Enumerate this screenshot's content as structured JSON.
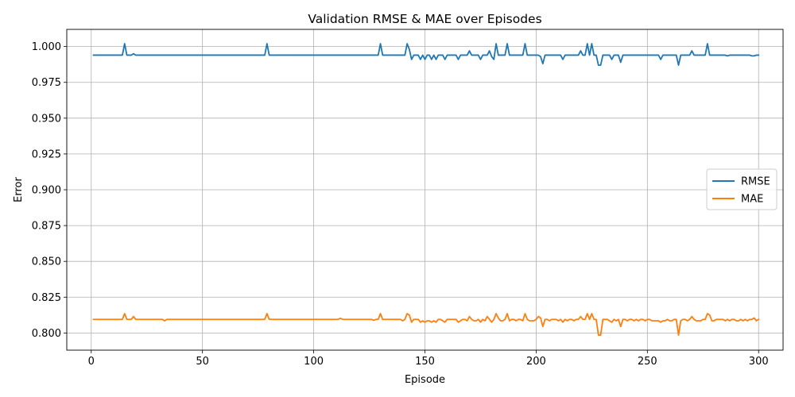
{
  "chart_data": {
    "type": "line",
    "title": "Validation RMSE & MAE over Episodes",
    "xlabel": "Episode",
    "ylabel": "Error",
    "xlim": [
      -11,
      311
    ],
    "ylim": [
      0.788,
      1.012
    ],
    "xticks": [
      0,
      50,
      100,
      150,
      200,
      250,
      300
    ],
    "yticks": [
      0.8,
      0.825,
      0.85,
      0.875,
      0.9,
      0.925,
      0.95,
      0.975,
      1.0
    ],
    "ytick_labels": [
      "0.800",
      "0.825",
      "0.850",
      "0.875",
      "0.900",
      "0.925",
      "0.950",
      "0.975",
      "1.000"
    ],
    "grid": true,
    "legend_position": "center-right",
    "series": [
      {
        "name": "RMSE",
        "color": "#1f77b4",
        "baseline": 0.994,
        "x_range": [
          1,
          300
        ],
        "deviations": [
          [
            15,
            1.002
          ],
          [
            16,
            0.994
          ],
          [
            19,
            0.995
          ],
          [
            20,
            0.994
          ],
          [
            79,
            1.002
          ],
          [
            80,
            0.994
          ],
          [
            130,
            1.002
          ],
          [
            131,
            0.994
          ],
          [
            142,
            1.002
          ],
          [
            143,
            0.998
          ],
          [
            144,
            0.991
          ],
          [
            145,
            0.994
          ],
          [
            146,
            0.994
          ],
          [
            147,
            0.994
          ],
          [
            148,
            0.991
          ],
          [
            149,
            0.994
          ],
          [
            150,
            0.991
          ],
          [
            151,
            0.994
          ],
          [
            152,
            0.994
          ],
          [
            153,
            0.991
          ],
          [
            154,
            0.994
          ],
          [
            155,
            0.991
          ],
          [
            156,
            0.994
          ],
          [
            157,
            0.994
          ],
          [
            158,
            0.994
          ],
          [
            159,
            0.991
          ],
          [
            160,
            0.994
          ],
          [
            164,
            0.994
          ],
          [
            165,
            0.991
          ],
          [
            166,
            0.994
          ],
          [
            170,
            0.997
          ],
          [
            171,
            0.994
          ],
          [
            174,
            0.994
          ],
          [
            175,
            0.991
          ],
          [
            176,
            0.994
          ],
          [
            178,
            0.994
          ],
          [
            179,
            0.997
          ],
          [
            180,
            0.993
          ],
          [
            181,
            0.991
          ],
          [
            182,
            1.002
          ],
          [
            183,
            0.994
          ],
          [
            187,
            1.002
          ],
          [
            188,
            0.994
          ],
          [
            195,
            1.002
          ],
          [
            196,
            0.994
          ],
          [
            201,
            0.994
          ],
          [
            202,
            0.993
          ],
          [
            203,
            0.988
          ],
          [
            204,
            0.994
          ],
          [
            211,
            0.994
          ],
          [
            212,
            0.991
          ],
          [
            213,
            0.994
          ],
          [
            219,
            0.994
          ],
          [
            220,
            0.997
          ],
          [
            221,
            0.994
          ],
          [
            222,
            0.994
          ],
          [
            223,
            1.002
          ],
          [
            224,
            0.994
          ],
          [
            225,
            1.002
          ],
          [
            226,
            0.994
          ],
          [
            227,
            0.994
          ],
          [
            228,
            0.987
          ],
          [
            229,
            0.987
          ],
          [
            230,
            0.994
          ],
          [
            233,
            0.994
          ],
          [
            234,
            0.991
          ],
          [
            235,
            0.994
          ],
          [
            237,
            0.994
          ],
          [
            238,
            0.989
          ],
          [
            239,
            0.994
          ],
          [
            255,
            0.994
          ],
          [
            256,
            0.991
          ],
          [
            257,
            0.994
          ],
          [
            263,
            0.994
          ],
          [
            264,
            0.987
          ],
          [
            265,
            0.994
          ],
          [
            269,
            0.994
          ],
          [
            270,
            0.997
          ],
          [
            271,
            0.994
          ],
          [
            276,
            0.994
          ],
          [
            277,
            1.002
          ],
          [
            278,
            0.994
          ],
          [
            285,
            0.994
          ],
          [
            286,
            0.9935
          ],
          [
            287,
            0.994
          ],
          [
            296,
            0.994
          ],
          [
            297,
            0.9935
          ],
          [
            298,
            0.9935
          ],
          [
            299,
            0.994
          ]
        ]
      },
      {
        "name": "MAE",
        "color": "#ff7f0e",
        "baseline": 0.8095,
        "x_range": [
          1,
          300
        ],
        "deviations": [
          [
            14,
            0.8095
          ],
          [
            15,
            0.8135
          ],
          [
            16,
            0.8095
          ],
          [
            18,
            0.8095
          ],
          [
            19,
            0.8115
          ],
          [
            20,
            0.8095
          ],
          [
            32,
            0.8095
          ],
          [
            33,
            0.8085
          ],
          [
            34,
            0.8095
          ],
          [
            79,
            0.8135
          ],
          [
            80,
            0.8095
          ],
          [
            111,
            0.8095
          ],
          [
            112,
            0.8102
          ],
          [
            113,
            0.8095
          ],
          [
            126,
            0.8095
          ],
          [
            127,
            0.8088
          ],
          [
            128,
            0.8095
          ],
          [
            129,
            0.8095
          ],
          [
            130,
            0.8135
          ],
          [
            131,
            0.8095
          ],
          [
            139,
            0.8095
          ],
          [
            140,
            0.8085
          ],
          [
            141,
            0.8095
          ],
          [
            142,
            0.8135
          ],
          [
            143,
            0.8125
          ],
          [
            144,
            0.8075
          ],
          [
            145,
            0.8095
          ],
          [
            146,
            0.8095
          ],
          [
            147,
            0.8095
          ],
          [
            148,
            0.8075
          ],
          [
            149,
            0.8085
          ],
          [
            150,
            0.8075
          ],
          [
            151,
            0.8085
          ],
          [
            152,
            0.8085
          ],
          [
            153,
            0.8075
          ],
          [
            154,
            0.8085
          ],
          [
            155,
            0.8075
          ],
          [
            156,
            0.8095
          ],
          [
            157,
            0.8095
          ],
          [
            158,
            0.8085
          ],
          [
            159,
            0.8075
          ],
          [
            160,
            0.8095
          ],
          [
            164,
            0.8095
          ],
          [
            165,
            0.8075
          ],
          [
            166,
            0.8085
          ],
          [
            167,
            0.8095
          ],
          [
            168,
            0.8095
          ],
          [
            169,
            0.8085
          ],
          [
            170,
            0.8115
          ],
          [
            171,
            0.8095
          ],
          [
            172,
            0.8085
          ],
          [
            173,
            0.8085
          ],
          [
            174,
            0.8095
          ],
          [
            175,
            0.8075
          ],
          [
            176,
            0.8095
          ],
          [
            177,
            0.8085
          ],
          [
            178,
            0.8115
          ],
          [
            179,
            0.8095
          ],
          [
            180,
            0.8075
          ],
          [
            181,
            0.8095
          ],
          [
            182,
            0.8135
          ],
          [
            183,
            0.8105
          ],
          [
            184,
            0.8085
          ],
          [
            185,
            0.8085
          ],
          [
            186,
            0.8095
          ],
          [
            187,
            0.8135
          ],
          [
            188,
            0.8085
          ],
          [
            189,
            0.8095
          ],
          [
            190,
            0.8095
          ],
          [
            191,
            0.8085
          ],
          [
            192,
            0.8095
          ],
          [
            193,
            0.8095
          ],
          [
            194,
            0.8085
          ],
          [
            195,
            0.8135
          ],
          [
            196,
            0.8095
          ],
          [
            197,
            0.8085
          ],
          [
            198,
            0.8085
          ],
          [
            199,
            0.8085
          ],
          [
            200,
            0.8095
          ],
          [
            201,
            0.8115
          ],
          [
            202,
            0.8105
          ],
          [
            203,
            0.8045
          ],
          [
            204,
            0.8095
          ],
          [
            205,
            0.8095
          ],
          [
            206,
            0.8085
          ],
          [
            207,
            0.8095
          ],
          [
            208,
            0.8095
          ],
          [
            209,
            0.8095
          ],
          [
            210,
            0.8085
          ],
          [
            211,
            0.8095
          ],
          [
            212,
            0.8075
          ],
          [
            213,
            0.8095
          ],
          [
            214,
            0.8085
          ],
          [
            215,
            0.8095
          ],
          [
            216,
            0.8095
          ],
          [
            217,
            0.8085
          ],
          [
            218,
            0.8095
          ],
          [
            219,
            0.8095
          ],
          [
            220,
            0.8115
          ],
          [
            221,
            0.8095
          ],
          [
            222,
            0.8095
          ],
          [
            223,
            0.8135
          ],
          [
            224,
            0.8095
          ],
          [
            225,
            0.8135
          ],
          [
            226,
            0.8095
          ],
          [
            227,
            0.8095
          ],
          [
            228,
            0.7985
          ],
          [
            229,
            0.7985
          ],
          [
            230,
            0.8095
          ],
          [
            231,
            0.8095
          ],
          [
            232,
            0.8095
          ],
          [
            233,
            0.8085
          ],
          [
            234,
            0.8075
          ],
          [
            235,
            0.8095
          ],
          [
            236,
            0.8085
          ],
          [
            237,
            0.8095
          ],
          [
            238,
            0.8045
          ],
          [
            239,
            0.8095
          ],
          [
            240,
            0.8095
          ],
          [
            241,
            0.8085
          ],
          [
            242,
            0.8095
          ],
          [
            243,
            0.8095
          ],
          [
            244,
            0.8085
          ],
          [
            245,
            0.8095
          ],
          [
            246,
            0.8085
          ],
          [
            247,
            0.8095
          ],
          [
            248,
            0.8095
          ],
          [
            249,
            0.8085
          ],
          [
            250,
            0.8095
          ],
          [
            251,
            0.8095
          ],
          [
            252,
            0.8085
          ],
          [
            253,
            0.8085
          ],
          [
            254,
            0.8085
          ],
          [
            255,
            0.8085
          ],
          [
            256,
            0.8075
          ],
          [
            257,
            0.8085
          ],
          [
            258,
            0.8085
          ],
          [
            259,
            0.8095
          ],
          [
            260,
            0.8085
          ],
          [
            261,
            0.8085
          ],
          [
            262,
            0.8095
          ],
          [
            263,
            0.8095
          ],
          [
            264,
            0.7985
          ],
          [
            265,
            0.8085
          ],
          [
            266,
            0.8095
          ],
          [
            267,
            0.8095
          ],
          [
            268,
            0.8085
          ],
          [
            269,
            0.8095
          ],
          [
            270,
            0.8115
          ],
          [
            271,
            0.8095
          ],
          [
            272,
            0.8085
          ],
          [
            273,
            0.8085
          ],
          [
            274,
            0.8085
          ],
          [
            275,
            0.8095
          ],
          [
            276,
            0.8095
          ],
          [
            277,
            0.8135
          ],
          [
            278,
            0.8125
          ],
          [
            279,
            0.8085
          ],
          [
            280,
            0.8085
          ],
          [
            285,
            0.8085
          ],
          [
            286,
            0.8095
          ],
          [
            287,
            0.8085
          ],
          [
            288,
            0.8095
          ],
          [
            289,
            0.8095
          ],
          [
            290,
            0.8085
          ],
          [
            291,
            0.8085
          ],
          [
            292,
            0.8095
          ],
          [
            293,
            0.8085
          ],
          [
            294,
            0.8095
          ],
          [
            295,
            0.8085
          ],
          [
            296,
            0.8095
          ],
          [
            297,
            0.8095
          ],
          [
            298,
            0.8105
          ],
          [
            299,
            0.8085
          ],
          [
            300,
            0.8095
          ]
        ]
      }
    ]
  }
}
